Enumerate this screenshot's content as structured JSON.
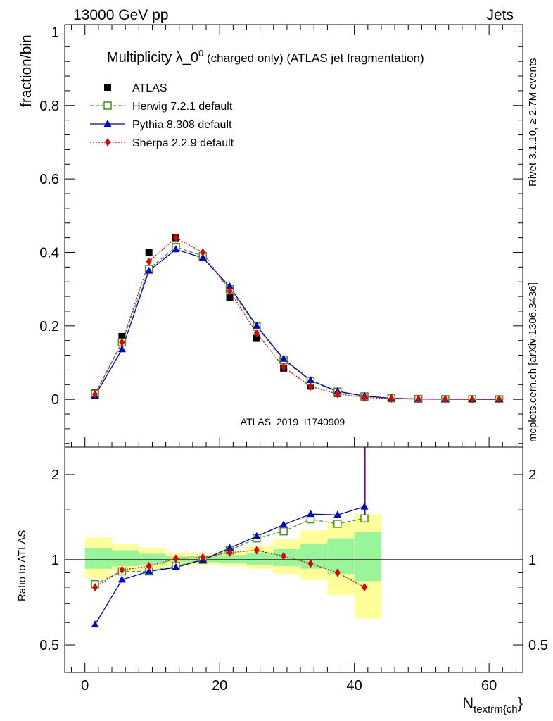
{
  "header": {
    "left": "13000 GeV pp",
    "right": "Jets"
  },
  "side_text": {
    "rivet": "Rivet 3.1.10, ≥ 2.7M events",
    "mcplots": "mcplots.cern.ch [arXiv:1306.3436]"
  },
  "title": {
    "main": "Multiplicity λ_0",
    "sup": "0",
    "rest": " (charged only) (ATLAS jet fragmentation)"
  },
  "analysis_id": "ATLAS_2019_I1740909",
  "chart_data": [
    {
      "type": "scatter",
      "panel": "main",
      "ylabel": "fraction/bin",
      "ylim": [
        -0.13,
        1.02
      ],
      "yticks": [
        0,
        0.2,
        0.4,
        0.6,
        0.8,
        1
      ],
      "ytick_labels": [
        "0",
        "0.2",
        "0.4",
        "0.6",
        "0.8",
        "1"
      ],
      "xlim": [
        -3,
        65
      ],
      "x": [
        1.5,
        5.5,
        9.5,
        13.5,
        17.5,
        21.5,
        25.5,
        29.5,
        33.5,
        37.5,
        41.5,
        45.5,
        49.5,
        53.5,
        57.5,
        61.5
      ],
      "legend_position": "top-left",
      "series": [
        {
          "name": "ATLAS",
          "color": "#000000",
          "marker": "square",
          "line": "none",
          "values": [
            0.017,
            0.171,
            0.4,
            0.44,
            0.39,
            0.278,
            0.166,
            0.085,
            0.036,
            0.016,
            0.006,
            0.002,
            0.001,
            0.0005,
            0.0003,
            0.0001
          ]
        },
        {
          "name": "Herwig 7.2.1 default",
          "color": "#4a9a1a",
          "marker": "open-square",
          "line": "dashed",
          "values": [
            0.014,
            0.155,
            0.355,
            0.415,
            0.39,
            0.3,
            0.198,
            0.107,
            0.05,
            0.021,
            0.008,
            0.003,
            0.001,
            0.0005,
            0.0003,
            0.0001
          ]
        },
        {
          "name": "Pythia 8.308 default",
          "color": "#0000cc",
          "marker": "triangle",
          "line": "solid",
          "values": [
            0.01,
            0.136,
            0.35,
            0.408,
            0.385,
            0.307,
            0.2,
            0.11,
            0.052,
            0.022,
            0.009,
            0.003,
            0.001,
            0.0005,
            0.0003,
            0.0001
          ]
        },
        {
          "name": "Sherpa 2.2.9 default",
          "color": "#e00000",
          "marker": "diamond",
          "line": "dotted",
          "values": [
            0.014,
            0.155,
            0.375,
            0.44,
            0.4,
            0.295,
            0.18,
            0.088,
            0.035,
            0.015,
            0.005,
            0.002,
            0.001,
            0.0005,
            0.0003,
            0.0001
          ]
        }
      ]
    },
    {
      "type": "line",
      "panel": "ratio",
      "ylabel": "Ratio to ATLAS",
      "log_scale": true,
      "ylim": [
        0.4,
        2.5
      ],
      "yticks": [
        0.5,
        1,
        2
      ],
      "ytick_labels": [
        "0.5",
        "1",
        "2"
      ],
      "xlabel": "N",
      "xlabel_sub": "textrm{ch",
      "xlabel_end": "}",
      "xticks": [
        0,
        20,
        40,
        60
      ],
      "xtick_labels": [
        "0",
        "20",
        "40",
        "60"
      ],
      "x": [
        1.5,
        5.5,
        9.5,
        13.5,
        17.5,
        21.5,
        25.5,
        29.5,
        33.5,
        37.5,
        41.5
      ],
      "bands": {
        "edges": [
          0,
          4,
          8,
          12,
          16,
          20,
          24,
          28,
          32,
          36,
          40,
          44
        ],
        "yellow_lo": [
          0.86,
          0.91,
          0.93,
          0.95,
          0.96,
          0.95,
          0.93,
          0.89,
          0.85,
          0.75,
          0.62
        ],
        "yellow_hi": [
          1.2,
          1.14,
          1.1,
          1.06,
          1.05,
          1.07,
          1.12,
          1.18,
          1.27,
          1.35,
          1.45
        ],
        "green_lo": [
          0.93,
          0.95,
          0.96,
          0.98,
          0.98,
          0.97,
          0.96,
          0.95,
          0.93,
          0.89,
          0.84
        ],
        "green_hi": [
          1.1,
          1.08,
          1.05,
          1.03,
          1.03,
          1.04,
          1.06,
          1.09,
          1.14,
          1.19,
          1.25
        ]
      },
      "series": [
        {
          "name": "Herwig 7.2.1 default",
          "color": "#4a9a1a",
          "marker": "open-square",
          "line": "dashed",
          "values": [
            0.82,
            0.91,
            0.91,
            0.95,
            1.0,
            1.08,
            1.19,
            1.26,
            1.39,
            1.34,
            1.4
          ]
        },
        {
          "name": "Pythia 8.308 default",
          "color": "#0000cc",
          "marker": "triangle",
          "line": "solid",
          "values": [
            0.59,
            0.85,
            0.91,
            0.94,
            1.0,
            1.1,
            1.21,
            1.33,
            1.45,
            1.44,
            1.54
          ]
        },
        {
          "name": "Sherpa 2.2.9 default",
          "color": "#e00000",
          "marker": "diamond",
          "line": "dotted",
          "values": [
            0.8,
            0.92,
            0.95,
            1.01,
            1.02,
            1.06,
            1.08,
            1.03,
            0.97,
            0.9,
            0.8
          ]
        }
      ]
    }
  ],
  "colors": {
    "yellow_band": "#ffff99",
    "green_band": "#99f599",
    "analysis_label": "#9a9a9a",
    "side_text": "#808080"
  }
}
